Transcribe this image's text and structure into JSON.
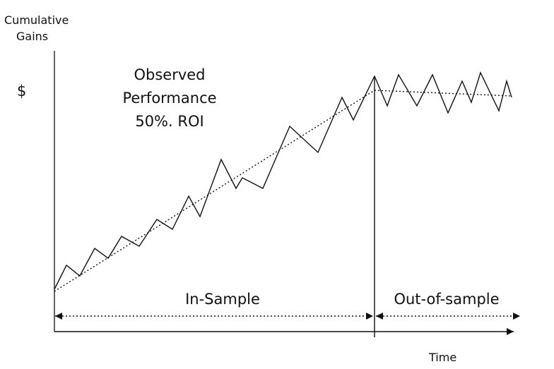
{
  "ylabel_line1": "Cumulative",
  "ylabel_line2": "Gains",
  "y_unit": "$",
  "xlabel": "Time",
  "annotation": {
    "line1": "Observed",
    "line2": "Performance",
    "line3": "50%. ROI"
  },
  "regions": {
    "in_sample": "In-Sample",
    "out_of_sample": "Out-of-sample"
  },
  "ink_color": "#111111"
}
